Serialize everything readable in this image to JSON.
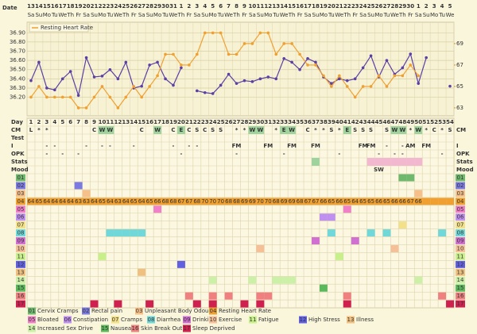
{
  "header": {
    "date_label": "Date",
    "dates": [
      13,
      14,
      15,
      16,
      17,
      18,
      19,
      20,
      21,
      22,
      23,
      24,
      25,
      26,
      27,
      28,
      29,
      30,
      31,
      1,
      2,
      3,
      4,
      5,
      6,
      7,
      8,
      9,
      10,
      11,
      12,
      13,
      14,
      15,
      16,
      17,
      18,
      19,
      20,
      21,
      22,
      23,
      24,
      25,
      26,
      27,
      28,
      29,
      30,
      1,
      2,
      3,
      4,
      5
    ],
    "weekdays": [
      "Sa",
      "Su",
      "Mo",
      "Tu",
      "We",
      "Th",
      "Fr",
      "Sa",
      "Su",
      "Mo",
      "Tu",
      "We",
      "Th",
      "Fr",
      "Sa",
      "Su",
      "Mo",
      "Tu",
      "We",
      "Th",
      "Fr",
      "Sa",
      "Su",
      "Mo",
      "Tu",
      "We",
      "Th",
      "Fr",
      "Sa",
      "Su",
      "Mo",
      "Tu",
      "We",
      "Th",
      "Fr",
      "Sa",
      "Su",
      "Mo",
      "Tu",
      "We",
      "Th",
      "Fr",
      "Sa",
      "Su",
      "Mo",
      "Tu",
      "We",
      "Th",
      "Fr",
      "Sa",
      "Su",
      "Mo",
      "Tu",
      "We"
    ]
  },
  "chart_data": {
    "type": "line",
    "x": [
      1,
      2,
      3,
      4,
      5,
      6,
      7,
      8,
      9,
      10,
      11,
      12,
      13,
      14,
      15,
      16,
      17,
      18,
      19,
      20,
      21,
      22,
      23,
      24,
      25,
      26,
      27,
      28,
      29,
      30,
      31,
      32,
      33,
      34,
      35,
      36,
      37,
      38,
      39,
      40,
      41,
      42,
      43,
      44,
      45,
      46,
      47,
      48,
      49,
      50,
      51,
      52,
      53,
      54
    ],
    "x_label": "Day",
    "ylim": [
      36.05,
      36.98
    ],
    "yticks": [
      {
        "value": 36.2,
        "label": "36.20"
      },
      {
        "value": 36.3,
        "label": "36.30"
      },
      {
        "value": 36.4,
        "label": "36.40"
      },
      {
        "value": 36.5,
        "label": "36.50"
      },
      {
        "value": 36.6,
        "label": "36.60"
      },
      {
        "value": 36.7,
        "label": "36.70"
      },
      {
        "value": 36.8,
        "label": "36.80"
      },
      {
        "value": 36.9,
        "label": "36.90"
      }
    ],
    "y2lim": [
      62.7,
      70.7
    ],
    "y2ticks": [
      63,
      65,
      67,
      69
    ],
    "grid": true,
    "series": [
      {
        "color": "#5b3fa6",
        "values": [
          36.38,
          36.58,
          36.3,
          36.28,
          36.4,
          36.48,
          36.22,
          36.63,
          36.42,
          36.43,
          36.5,
          36.4,
          36.58,
          36.3,
          36.32,
          36.55,
          36.58,
          36.4,
          36.33,
          36.52,
          null,
          36.27,
          36.25,
          36.24,
          36.33,
          36.45,
          36.35,
          36.38,
          36.37,
          36.4,
          36.42,
          36.4,
          36.62,
          36.58,
          36.5,
          36.62,
          36.58,
          36.42,
          36.35,
          36.4,
          36.38,
          36.4,
          36.52,
          36.65,
          36.42,
          36.6,
          36.45,
          36.52,
          36.67,
          36.35,
          36.63,
          null,
          null,
          36.32
        ]
      },
      {
        "name": "Resting Heart Rate",
        "color": "#f0a030",
        "axis": "y2",
        "values": [
          64,
          65,
          64,
          64,
          64,
          64,
          63,
          63,
          64,
          65,
          64,
          63,
          64,
          65,
          64,
          65,
          66,
          68,
          68,
          67,
          67,
          68,
          70,
          70,
          70,
          68,
          68,
          69,
          69,
          70,
          70,
          68,
          69,
          69,
          68,
          67,
          67,
          66,
          65,
          66,
          65,
          64,
          65,
          65,
          66,
          65,
          66,
          66,
          67,
          66,
          null,
          null,
          null,
          null
        ]
      }
    ]
  },
  "fertility": {
    "cm": {
      "label": "CM",
      "entries": [
        {
          "day": 1,
          "text": "L"
        },
        {
          "day": 2,
          "text": "*"
        },
        {
          "day": 3,
          "text": "*"
        },
        {
          "day": 9,
          "text": "C"
        },
        {
          "day": 10,
          "text": "W",
          "color": "#9ed39e"
        },
        {
          "day": 11,
          "text": "W",
          "color": "#9ed39e"
        },
        {
          "day": 15,
          "text": "C"
        },
        {
          "day": 17,
          "text": "W",
          "color": "#9ed39e"
        },
        {
          "day": 19,
          "text": "C"
        },
        {
          "day": 20,
          "text": "E",
          "color": "#9ed39e"
        },
        {
          "day": 21,
          "text": "C"
        },
        {
          "day": 22,
          "text": "S"
        },
        {
          "day": 23,
          "text": "C"
        },
        {
          "day": 24,
          "text": "S"
        },
        {
          "day": 25,
          "text": "S"
        },
        {
          "day": 27,
          "text": "*"
        },
        {
          "day": 28,
          "text": "*"
        },
        {
          "day": 29,
          "text": "W",
          "color": "#9ed39e"
        },
        {
          "day": 30,
          "text": "W",
          "color": "#9ed39e"
        },
        {
          "day": 32,
          "text": "*"
        },
        {
          "day": 33,
          "text": "E",
          "color": "#9ed39e"
        },
        {
          "day": 34,
          "text": "W",
          "color": "#9ed39e"
        },
        {
          "day": 36,
          "text": "C"
        },
        {
          "day": 37,
          "text": "*"
        },
        {
          "day": 38,
          "text": "*"
        },
        {
          "day": 39,
          "text": "S"
        },
        {
          "day": 40,
          "text": "*"
        },
        {
          "day": 41,
          "text": "E",
          "color": "#9ed39e"
        },
        {
          "day": 42,
          "text": "S"
        },
        {
          "day": 43,
          "text": "S"
        },
        {
          "day": 44,
          "text": "S"
        },
        {
          "day": 46,
          "text": "S"
        },
        {
          "day": 47,
          "text": "W",
          "color": "#9ed39e"
        },
        {
          "day": 48,
          "text": "W",
          "color": "#9ed39e"
        },
        {
          "day": 49,
          "text": "*"
        },
        {
          "day": 50,
          "text": "W",
          "color": "#9ed39e"
        },
        {
          "day": 51,
          "text": "*"
        },
        {
          "day": 52,
          "text": "C"
        },
        {
          "day": 53,
          "text": "*"
        },
        {
          "day": 54,
          "text": "S"
        }
      ]
    },
    "test": {
      "label": "Test",
      "entries": []
    },
    "intercourse": {
      "label": "I",
      "entries": [
        {
          "day": 3,
          "text": "-"
        },
        {
          "day": 4,
          "text": "-"
        },
        {
          "day": 8,
          "text": "-"
        },
        {
          "day": 10,
          "text": "-"
        },
        {
          "day": 11,
          "text": "-"
        },
        {
          "day": 14,
          "text": "-"
        },
        {
          "day": 19,
          "text": "-"
        },
        {
          "day": 21,
          "text": "-"
        },
        {
          "day": 22,
          "text": "-"
        },
        {
          "day": 27,
          "text": "FM"
        },
        {
          "day": 31,
          "text": "FM"
        },
        {
          "day": 34,
          "text": "FM"
        },
        {
          "day": 37,
          "text": "FM"
        },
        {
          "day": 43,
          "text": "FM"
        },
        {
          "day": 44,
          "text": "FM"
        },
        {
          "day": 46,
          "text": "-"
        },
        {
          "day": 48,
          "text": "-"
        },
        {
          "day": 49,
          "text": "AM"
        },
        {
          "day": 51,
          "text": "FM"
        }
      ]
    },
    "opk": {
      "label": "OPK",
      "entries": [
        {
          "day": 3,
          "text": "-"
        },
        {
          "day": 5,
          "text": "-"
        },
        {
          "day": 7,
          "text": "-"
        },
        {
          "day": 20,
          "text": "-"
        },
        {
          "day": 27,
          "text": "-"
        },
        {
          "day": 33,
          "text": "-"
        },
        {
          "day": 40,
          "text": "-"
        },
        {
          "day": 45,
          "text": "-"
        },
        {
          "day": 47,
          "text": "-"
        },
        {
          "day": 48,
          "text": "-"
        },
        {
          "day": 53,
          "text": "-"
        }
      ]
    },
    "stats": {
      "label": "Stats",
      "cells": [
        {
          "day": 37,
          "color": "#9ed39e"
        },
        {
          "day": 44,
          "color": "#f2b8d0"
        },
        {
          "day": 45,
          "color": "#f2b8d0"
        },
        {
          "day": 46,
          "color": "#f2b8d0"
        },
        {
          "day": 47,
          "color": "#f2b8d0"
        },
        {
          "day": 48,
          "color": "#f2b8d0"
        },
        {
          "day": 49,
          "color": "#f2b8d0"
        },
        {
          "day": 50,
          "color": "#f2b8d0"
        }
      ]
    },
    "mood": {
      "label": "Mood",
      "entries": [
        {
          "day": 45,
          "text": "SW"
        }
      ]
    }
  },
  "symptoms": [
    {
      "code": "01",
      "name": "Cervix Cramps",
      "color": "#6fb96f",
      "days": [
        48,
        49
      ]
    },
    {
      "code": "02",
      "name": "Rectal pain",
      "color": "#7a7ae0",
      "days": [
        7
      ]
    },
    {
      "code": "03",
      "name": "Unpleasant Body Odour",
      "color": "#f5c08a",
      "days": [
        8,
        50
      ]
    },
    {
      "code": "04",
      "name": "Resting Heart Rate",
      "color": "#f0a030"
    },
    {
      "code": "05",
      "name": "Bloated",
      "color": "#f080c8",
      "days": [
        17,
        41
      ]
    },
    {
      "code": "06",
      "name": "Constipation",
      "color": "#c090f0",
      "days": [
        38,
        39
      ]
    },
    {
      "code": "07",
      "name": "Cramps",
      "color": "#f3e08a",
      "days": [
        48
      ]
    },
    {
      "code": "08",
      "name": "Diarrhea",
      "color": "#70d8d8",
      "days": [
        11,
        12,
        13,
        14,
        15,
        39,
        44,
        46,
        53
      ]
    },
    {
      "code": "09",
      "name": "Drinking",
      "color": "#d070d0",
      "days": [
        37,
        42
      ]
    },
    {
      "code": "10",
      "name": "Exercise",
      "color": "#f5c098",
      "days": [
        30,
        47
      ]
    },
    {
      "code": "11",
      "name": "Fatigue",
      "color": "#c8f08a",
      "days": [
        10,
        40
      ]
    },
    {
      "code": "12",
      "name": "High Stress",
      "color": "#6060e0",
      "days": [
        20
      ]
    },
    {
      "code": "13",
      "name": "Illness",
      "color": "#f0c080",
      "days": [
        15
      ]
    },
    {
      "code": "14",
      "name": "Increased Sex Drive",
      "color": "#cdf0a8",
      "days": [
        24,
        29,
        32,
        33,
        34,
        50
      ]
    },
    {
      "code": "15",
      "name": "Nausea",
      "color": "#5cb85c",
      "days": [
        38
      ]
    },
    {
      "code": "16",
      "name": "Skin Break Out",
      "color": "#f08080",
      "days": [
        21,
        24,
        26,
        30,
        31,
        41,
        53
      ]
    },
    {
      "code": "17",
      "name": "Sleep Deprived",
      "color": "#d02050",
      "days": [
        9,
        12,
        16,
        22,
        24,
        28,
        30,
        41,
        54
      ]
    }
  ]
}
